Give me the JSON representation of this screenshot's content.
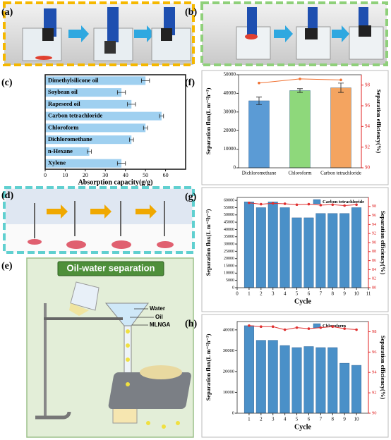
{
  "panel_labels": [
    "(a)",
    "(b)",
    "(c)",
    "(f)",
    "(d)",
    "(g)",
    "(e)",
    "(h)"
  ],
  "diagram": {
    "title": "Oil-water separation",
    "labels": [
      "Water",
      "Oil",
      "MLNGA"
    ]
  },
  "chart_data": [
    {
      "type": "bar",
      "orientation": "horizontal",
      "xlabel": "Absorption capacity(g/g)",
      "categories": [
        "Dimethylsilicone oil",
        "Soybean oil",
        "Rapeseed oil",
        "Carbon tetrachloride",
        "Chloroform",
        "Dichloromethane",
        "n-Hexane",
        "Xylene"
      ],
      "series": [
        {
          "color": "#9fd0f0",
          "values": [
            50,
            38,
            43,
            58,
            50,
            43,
            22,
            38
          ],
          "errors": [
            2,
            2,
            2,
            1,
            1,
            1,
            1,
            2
          ]
        }
      ],
      "xlim": [
        0,
        70
      ],
      "xticks": [
        0,
        10,
        20,
        30,
        40,
        50,
        60
      ]
    },
    {
      "type": "bar",
      "ylabel": "Separation flux(L m⁻²h⁻¹)",
      "y2label": "Separation efficiency(%)",
      "categories": [
        "Dichloromethane",
        "Chloroform",
        "Carbon tetrachloride"
      ],
      "series": [
        {
          "colors": [
            "#5b9bd5",
            "#8ed87b",
            "#f4a460"
          ],
          "values": [
            36000,
            41500,
            43000
          ],
          "errors": [
            2000,
            1000,
            2500
          ]
        },
        {
          "type": "line",
          "axis": "y2",
          "color": "#f07030",
          "values": [
            98.2,
            98.6,
            98.5
          ]
        }
      ],
      "ylim": [
        0,
        50000
      ],
      "yticks": [
        0,
        10000,
        20000,
        30000,
        40000,
        50000
      ],
      "y2lim": [
        90,
        99
      ],
      "y2ticks": [
        90,
        92,
        94,
        96,
        98
      ]
    },
    {
      "type": "bar",
      "xlabel": "Cycle",
      "ylabel": "Separation flux(L m⁻²h⁻¹)",
      "y2label": "Separation efficiency(%)",
      "x": [
        1,
        2,
        3,
        4,
        5,
        6,
        7,
        8,
        9,
        10
      ],
      "series": [
        {
          "name": "Carbon tetrachloride",
          "color": "#4a90c8",
          "values": [
            59000,
            55000,
            59000,
            55000,
            48000,
            48000,
            51000,
            51000,
            51000,
            55000
          ]
        },
        {
          "type": "line",
          "axis": "y2",
          "color": "#e03030",
          "values": [
            98.8,
            98.5,
            98.7,
            98.6,
            98.4,
            98.5,
            98.3,
            98.4,
            98.2,
            98.4
          ]
        }
      ],
      "xlim": [
        0,
        11
      ],
      "xticks": [
        0,
        1,
        2,
        3,
        4,
        5,
        6,
        7,
        8,
        9,
        10,
        11
      ],
      "ylim": [
        0,
        62000
      ],
      "yticks": [
        0,
        5000,
        10000,
        15000,
        20000,
        25000,
        30000,
        35000,
        40000,
        45000,
        50000,
        55000,
        60000
      ],
      "y2lim": [
        80,
        100
      ],
      "y2ticks": [
        80,
        82,
        84,
        86,
        88,
        90,
        92,
        94,
        96,
        98
      ]
    },
    {
      "type": "bar",
      "xlabel": "Cycle",
      "ylabel": "Separation flux(L m⁻²h⁻¹)",
      "y2label": "Separation efficiency(%)",
      "x": [
        1,
        2,
        3,
        4,
        5,
        6,
        7,
        8,
        9,
        10
      ],
      "series": [
        {
          "name": "Chloroform",
          "color": "#4a90c8",
          "values": [
            42000,
            35000,
            35000,
            32500,
            31500,
            32000,
            31500,
            31500,
            24000,
            23000
          ]
        },
        {
          "type": "line",
          "axis": "y2",
          "color": "#e03030",
          "values": [
            98.6,
            98.5,
            98.5,
            98.2,
            98.4,
            98.3,
            98.4,
            98.5,
            98.3,
            98.2
          ]
        }
      ],
      "xlim": [
        0,
        11
      ],
      "xticks": [
        1,
        2,
        3,
        4,
        5,
        6,
        7,
        8,
        9,
        10
      ],
      "ylim": [
        0,
        44000
      ],
      "yticks": [
        0,
        10000,
        20000,
        30000,
        40000
      ],
      "y2lim": [
        90,
        99
      ],
      "y2ticks": [
        90,
        92,
        94,
        96,
        98
      ]
    }
  ]
}
